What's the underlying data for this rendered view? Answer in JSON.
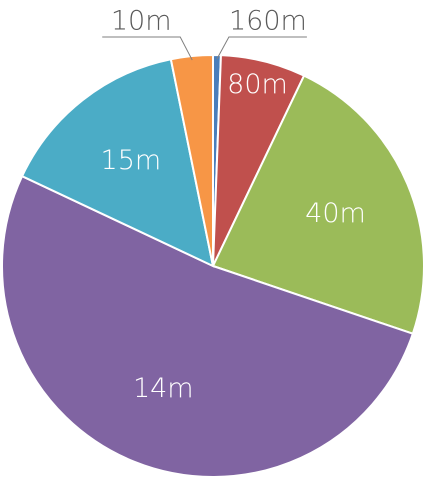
{
  "chart_data": {
    "type": "pie",
    "categories": [
      "160m",
      "80m",
      "40m",
      "14m",
      "15m",
      "10m"
    ],
    "values": [
      0.6,
      6.5,
      23.1,
      51.8,
      14.8,
      3.2
    ],
    "colors": [
      "#4a7ebb",
      "#c0504d",
      "#9bbb59",
      "#8064a2",
      "#4bacc6",
      "#f79646"
    ]
  }
}
